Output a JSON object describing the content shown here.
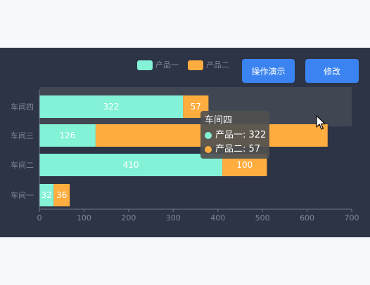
{
  "legend": [
    {
      "label": "产品一",
      "color": "#83f2d6"
    },
    {
      "label": "产品二",
      "color": "#ffad3f"
    }
  ],
  "buttons": {
    "demo": "操作演示",
    "edit": "修改"
  },
  "tooltip": {
    "title": "车间四",
    "rows": [
      {
        "label": "产品一: 322",
        "color": "#83f2d6"
      },
      {
        "label": "产品二: 57",
        "color": "#ffad3f"
      }
    ]
  },
  "chart_data": {
    "type": "bar",
    "orientation": "horizontal",
    "stacked": true,
    "categories": [
      "车间一",
      "车间二",
      "车间三",
      "车间四"
    ],
    "series": [
      {
        "name": "产品一",
        "values": [
          32,
          410,
          126,
          322
        ],
        "color": "#83f2d6"
      },
      {
        "name": "产品二",
        "values": [
          36,
          100,
          520,
          57
        ],
        "color": "#ffad3f"
      }
    ],
    "xlim": [
      0,
      700
    ],
    "xticks": [
      "0",
      "100",
      "200",
      "300",
      "400",
      "500",
      "600",
      "700"
    ],
    "data_labels": [
      [
        "32",
        "410",
        "126",
        "322"
      ],
      [
        "36",
        "100",
        "",
        "57"
      ]
    ],
    "highlight_category": "车间四",
    "grid": false,
    "legend_position": "top-right"
  }
}
